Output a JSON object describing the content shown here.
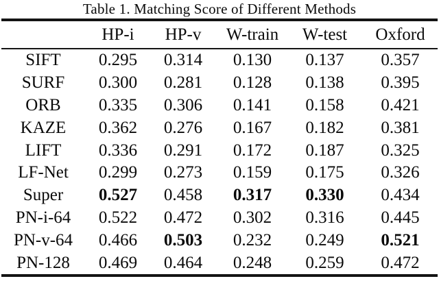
{
  "page": {
    "background": "#ffffff",
    "text_color": "#0a0a0a",
    "rule_color": "#141414"
  },
  "table": {
    "caption": "Table 1. Matching Score of Different Methods",
    "columns": [
      "HP-i",
      "HP-v",
      "W-train",
      "W-test",
      "Oxford"
    ],
    "rows": [
      {
        "method": "SIFT",
        "values": [
          "0.295",
          "0.314",
          "0.130",
          "0.137",
          "0.357"
        ],
        "bold": []
      },
      {
        "method": "SURF",
        "values": [
          "0.300",
          "0.281",
          "0.128",
          "0.138",
          "0.395"
        ],
        "bold": []
      },
      {
        "method": "ORB",
        "values": [
          "0.335",
          "0.306",
          "0.141",
          "0.158",
          "0.421"
        ],
        "bold": []
      },
      {
        "method": "KAZE",
        "values": [
          "0.362",
          "0.276",
          "0.167",
          "0.182",
          "0.381"
        ],
        "bold": []
      },
      {
        "method": "LIFT",
        "values": [
          "0.336",
          "0.291",
          "0.172",
          "0.187",
          "0.325"
        ],
        "bold": []
      },
      {
        "method": "LF-Net",
        "values": [
          "0.299",
          "0.273",
          "0.159",
          "0.175",
          "0.326"
        ],
        "bold": []
      },
      {
        "method": "Super",
        "values": [
          "0.527",
          "0.458",
          "0.317",
          "0.330",
          "0.434"
        ],
        "bold": [
          0,
          2,
          3
        ]
      },
      {
        "method": "PN-i-64",
        "values": [
          "0.522",
          "0.472",
          "0.302",
          "0.316",
          "0.445"
        ],
        "bold": []
      },
      {
        "method": "PN-v-64",
        "values": [
          "0.466",
          "0.503",
          "0.232",
          "0.249",
          "0.521"
        ],
        "bold": [
          1,
          4
        ]
      },
      {
        "method": "PN-128",
        "values": [
          "0.469",
          "0.464",
          "0.248",
          "0.259",
          "0.472"
        ],
        "bold": []
      }
    ]
  }
}
